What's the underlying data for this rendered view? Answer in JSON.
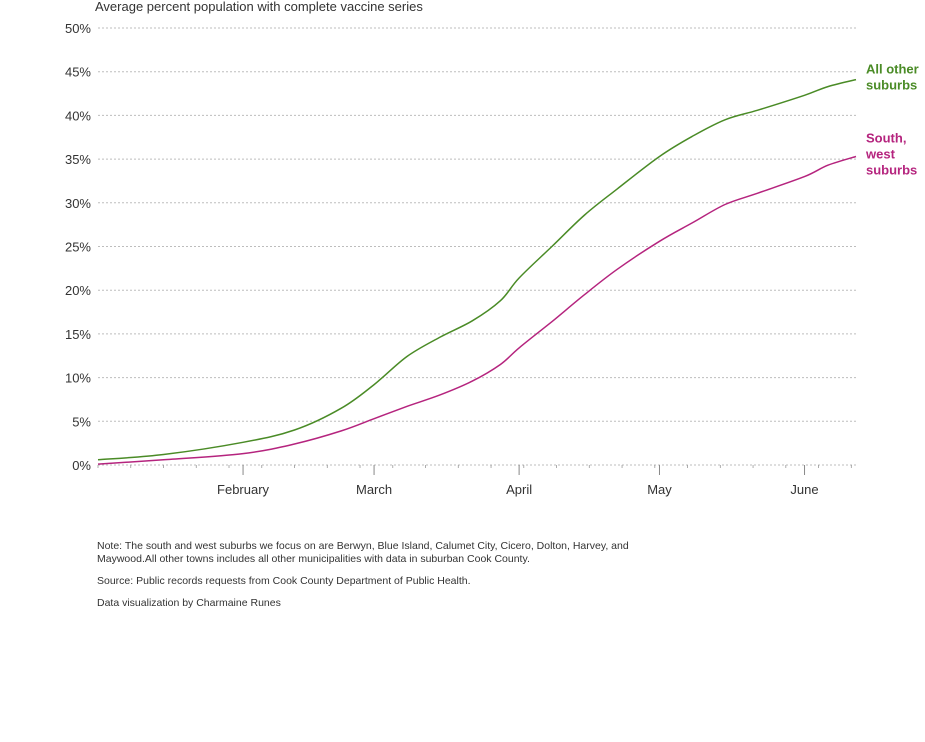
{
  "chart_data": {
    "type": "line",
    "title": "Average percent population with complete vaccine series",
    "xlabel": "",
    "ylabel": "",
    "ylim": [
      0,
      50
    ],
    "yticks": [
      "0%",
      "5%",
      "10%",
      "15%",
      "20%",
      "25%",
      "30%",
      "35%",
      "40%",
      "45%",
      "50%"
    ],
    "xlim": [
      "2021-01-01",
      "2021-06-12"
    ],
    "xticks": [
      {
        "date": "2021-02-01",
        "label": "February"
      },
      {
        "date": "2021-03-01",
        "label": "March"
      },
      {
        "date": "2021-04-01",
        "label": "April"
      },
      {
        "date": "2021-05-01",
        "label": "May"
      },
      {
        "date": "2021-06-01",
        "label": "June"
      }
    ],
    "grid": true,
    "series": [
      {
        "name": "All other suburbs",
        "color": "#4a8b26",
        "points": [
          {
            "x": "2021-01-01",
            "y": 0.6
          },
          {
            "x": "2021-01-15",
            "y": 1.2
          },
          {
            "x": "2021-02-01",
            "y": 2.6
          },
          {
            "x": "2021-02-12",
            "y": 4.0
          },
          {
            "x": "2021-02-22",
            "y": 6.5
          },
          {
            "x": "2021-03-01",
            "y": 9.2
          },
          {
            "x": "2021-03-08",
            "y": 12.4
          },
          {
            "x": "2021-03-15",
            "y": 14.6
          },
          {
            "x": "2021-03-22",
            "y": 16.5
          },
          {
            "x": "2021-03-28",
            "y": 18.8
          },
          {
            "x": "2021-04-01",
            "y": 21.4
          },
          {
            "x": "2021-04-08",
            "y": 25.0
          },
          {
            "x": "2021-04-15",
            "y": 28.6
          },
          {
            "x": "2021-04-22",
            "y": 31.6
          },
          {
            "x": "2021-05-01",
            "y": 35.3
          },
          {
            "x": "2021-05-08",
            "y": 37.6
          },
          {
            "x": "2021-05-15",
            "y": 39.5
          },
          {
            "x": "2021-05-22",
            "y": 40.6
          },
          {
            "x": "2021-06-01",
            "y": 42.3
          },
          {
            "x": "2021-06-06",
            "y": 43.3
          },
          {
            "x": "2021-06-12",
            "y": 44.1
          }
        ]
      },
      {
        "name": "South, west suburbs",
        "color": "#b5247e",
        "points": [
          {
            "x": "2021-01-01",
            "y": 0.1
          },
          {
            "x": "2021-01-15",
            "y": 0.6
          },
          {
            "x": "2021-02-01",
            "y": 1.3
          },
          {
            "x": "2021-02-12",
            "y": 2.4
          },
          {
            "x": "2021-02-22",
            "y": 3.9
          },
          {
            "x": "2021-03-01",
            "y": 5.3
          },
          {
            "x": "2021-03-08",
            "y": 6.7
          },
          {
            "x": "2021-03-15",
            "y": 8.0
          },
          {
            "x": "2021-03-22",
            "y": 9.6
          },
          {
            "x": "2021-03-28",
            "y": 11.5
          },
          {
            "x": "2021-04-01",
            "y": 13.4
          },
          {
            "x": "2021-04-08",
            "y": 16.4
          },
          {
            "x": "2021-04-15",
            "y": 19.5
          },
          {
            "x": "2021-04-22",
            "y": 22.4
          },
          {
            "x": "2021-05-01",
            "y": 25.6
          },
          {
            "x": "2021-05-08",
            "y": 27.7
          },
          {
            "x": "2021-05-15",
            "y": 29.8
          },
          {
            "x": "2021-05-22",
            "y": 31.1
          },
          {
            "x": "2021-06-01",
            "y": 33.0
          },
          {
            "x": "2021-06-06",
            "y": 34.3
          },
          {
            "x": "2021-06-12",
            "y": 35.3
          }
        ]
      }
    ],
    "direct_labels": [
      {
        "series": 0,
        "lines": [
          "All other",
          "suburbs"
        ]
      },
      {
        "series": 1,
        "lines": [
          "South,",
          "west",
          "suburbs"
        ]
      }
    ]
  },
  "notes": {
    "note": "Note: The south and west suburbs we focus on are Berwyn, Blue Island, Calumet City, Cicero, Dolton, Harvey, and Maywood.All other towns includes all other municipalities with data in suburban Cook County.",
    "source": "Source: Public records requests from Cook County Department of Public Health.",
    "credit": "Data visualization by Charmaine Runes"
  }
}
